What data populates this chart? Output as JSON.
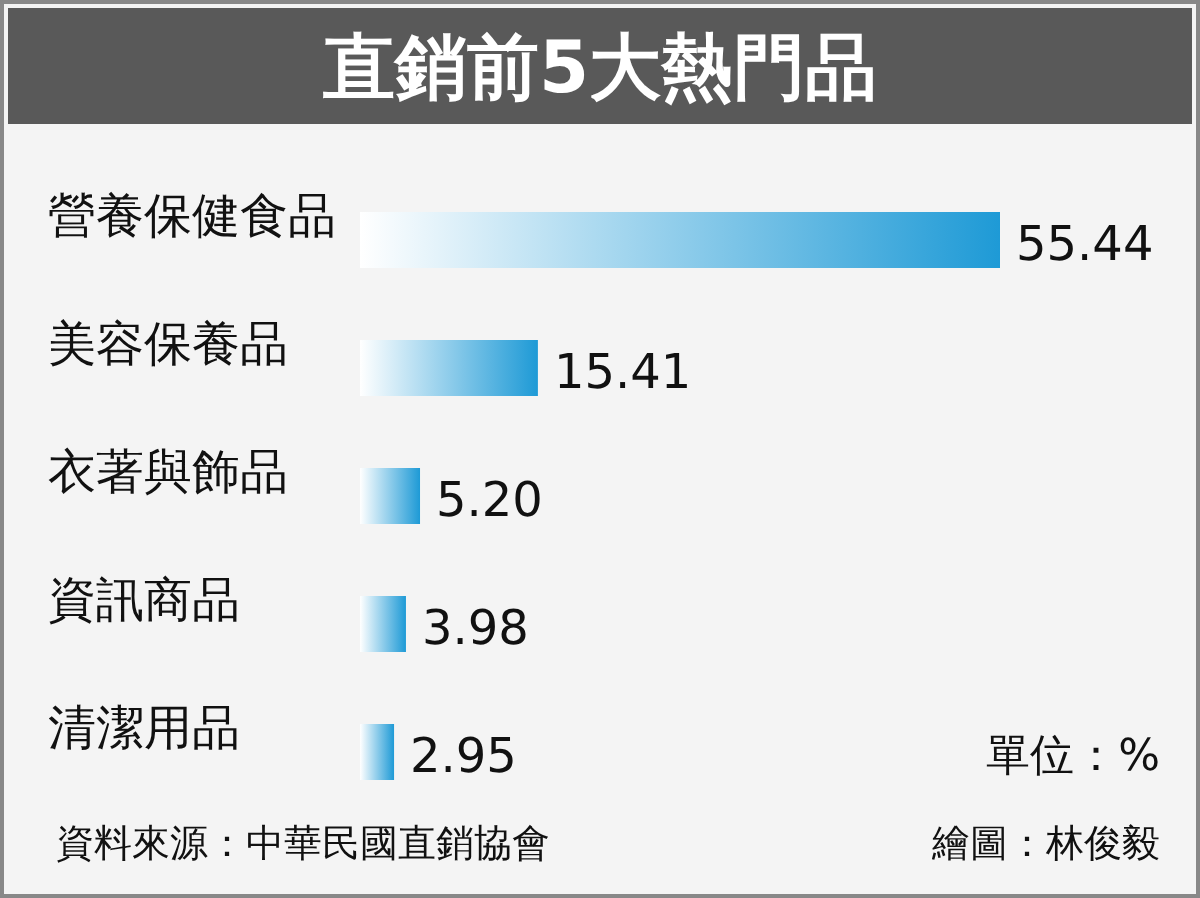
{
  "chart_data": {
    "type": "bar",
    "orientation": "horizontal",
    "title": "直銷前5大熱門品",
    "categories": [
      "營養保健食品",
      "美容保養品",
      "衣著與飾品",
      "資訊商品",
      "清潔用品"
    ],
    "values": [
      55.44,
      15.41,
      5.2,
      3.98,
      2.95
    ],
    "value_labels": [
      "55.44",
      "15.41",
      "5.20",
      "3.98",
      "2.95"
    ],
    "color": "#1e9ad6",
    "annotations": [
      "單位：%",
      "資料來源：中華民國直銷協會",
      "繪圖：林俊毅"
    ]
  }
}
